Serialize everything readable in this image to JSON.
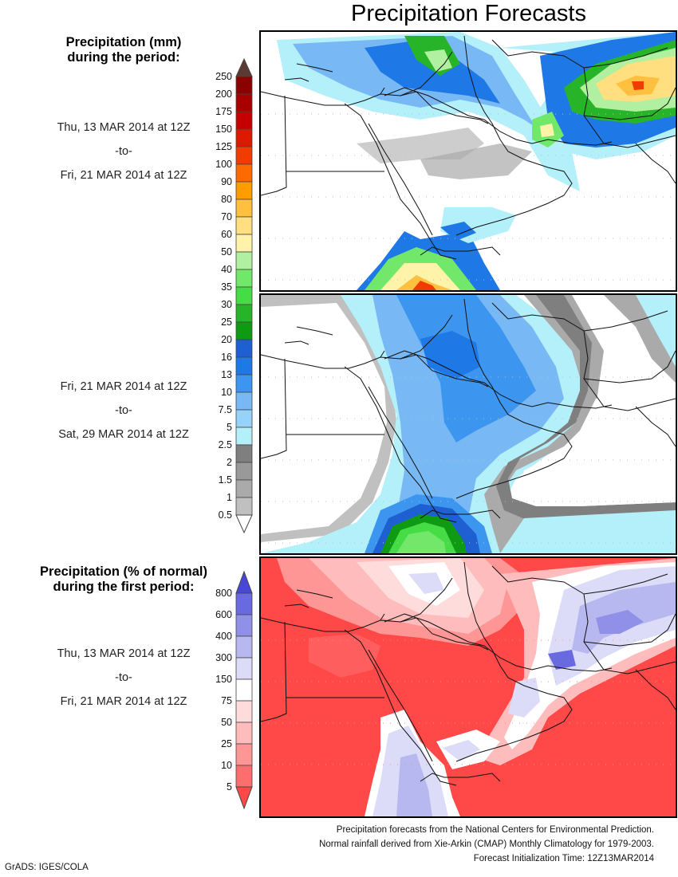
{
  "title": "Precipitation Forecasts",
  "legend_mm": {
    "heading_line1": "Precipitation (mm)",
    "heading_line2": "during the period:",
    "levels": [
      "250",
      "200",
      "175",
      "150",
      "125",
      "100",
      "90",
      "80",
      "70",
      "60",
      "50",
      "40",
      "35",
      "30",
      "25",
      "20",
      "16",
      "13",
      "10",
      "7.5",
      "5",
      "2.5",
      "2",
      "1.5",
      "1",
      "0.5"
    ],
    "colors": [
      "#5c3a33",
      "#8b0000",
      "#a80000",
      "#c40000",
      "#dd1a00",
      "#f03c00",
      "#ff6a00",
      "#ff9d00",
      "#ffbf3f",
      "#ffdf7f",
      "#fff3aa",
      "#b0f0a0",
      "#72e86a",
      "#46dc46",
      "#28b428",
      "#0f9a14",
      "#1e5fd2",
      "#1e78e6",
      "#3c96f0",
      "#78b9f5",
      "#96d2fa",
      "#b4f0fa",
      "#7f7f7f",
      "#999999",
      "#aaaaaa",
      "#c0c0c0",
      "#ffffff"
    ],
    "top_arrow_color": "#5c3a33"
  },
  "period1": {
    "start": "Thu, 13 MAR 2014 at 12Z",
    "sep": "-to-",
    "end": "Fri, 21 MAR 2014 at 12Z"
  },
  "period2": {
    "start": "Fri, 21 MAR 2014 at 12Z",
    "sep": "-to-",
    "end": "Sat, 29 MAR 2014 at 12Z"
  },
  "legend_pct": {
    "heading_line1": "Precipitation (% of normal)",
    "heading_line2": "during the first period:",
    "levels": [
      "800",
      "600",
      "400",
      "300",
      "150",
      "75",
      "50",
      "25",
      "10",
      "5"
    ],
    "colors": [
      "#4848d8",
      "#6a6ae0",
      "#9090e8",
      "#b8b8f0",
      "#dcdcf8",
      "#ffffff",
      "#ffdcdc",
      "#ffbcbc",
      "#ff9696",
      "#ff6e6e",
      "#ff4848"
    ]
  },
  "period3": {
    "start": "Thu, 13 MAR 2014 at 12Z",
    "sep": "-to-",
    "end": "Fri, 21 MAR 2014 at 12Z"
  },
  "maps": [
    {
      "name": "week1-precip-mm"
    },
    {
      "name": "week2-precip-mm"
    },
    {
      "name": "week1-percent-normal"
    }
  ],
  "footer": {
    "line1": "Precipitation forecasts from the National Centers for Environmental Prediction.",
    "line2": "Normal rainfall derived from Xie-Arkin (CMAP) Monthly Climatology for 1979-2003.",
    "line3": "Forecast Initialization Time: 12Z13MAR2014"
  },
  "credit": "GrADS: IGES/COLA"
}
